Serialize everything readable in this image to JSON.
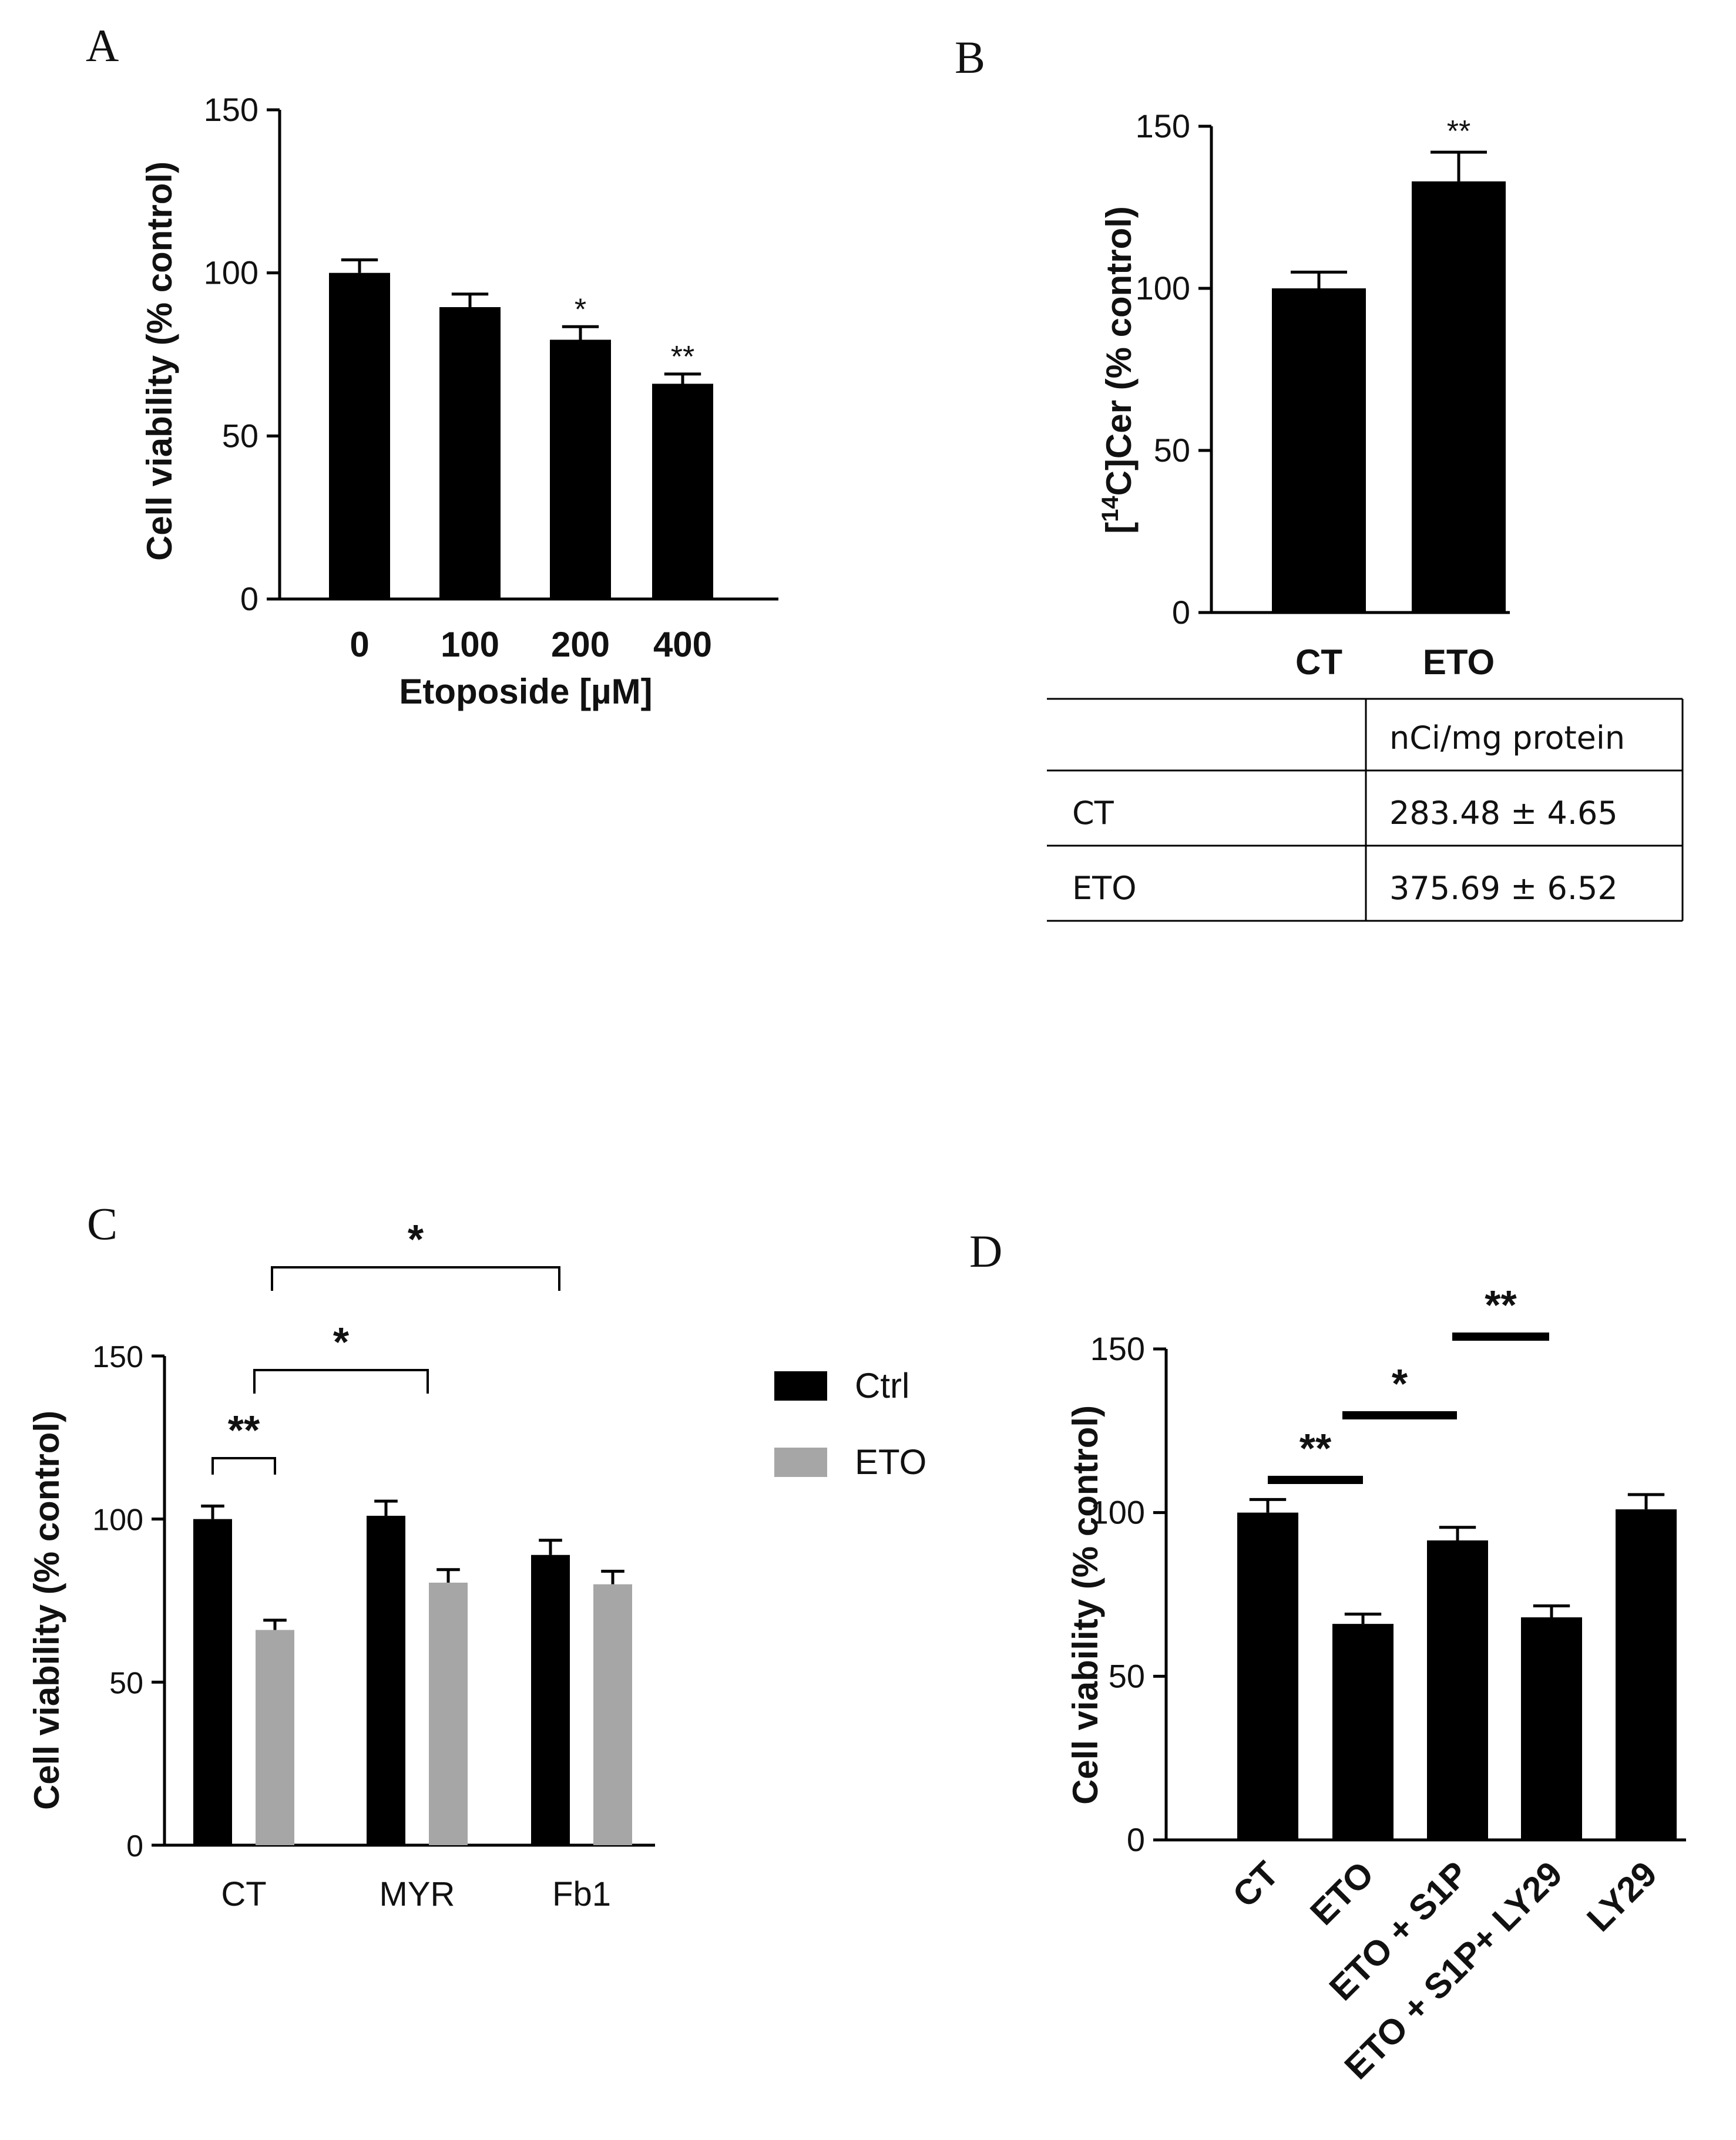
{
  "chart_data": [
    {
      "panel": "A",
      "type": "bar",
      "ylabel": "Cell viability (% control)",
      "xlabel": "Etoposide [µM]",
      "ylim": [
        0,
        150
      ],
      "yticks": [
        "0",
        "50",
        "100",
        "150"
      ],
      "categories": [
        "0",
        "100",
        "200",
        "400"
      ],
      "series": [
        {
          "name": "Cell viability",
          "color": "#000000",
          "values": [
            100,
            89.5,
            79.5,
            66
          ],
          "errors": [
            4,
            4,
            4,
            3
          ]
        }
      ],
      "significance": [
        "",
        "",
        "*",
        "**"
      ]
    },
    {
      "panel": "B",
      "type": "bar",
      "ylabel_parts": {
        "pre": "[",
        "sup": "14",
        "post": "C]Cer (% control)"
      },
      "ylim": [
        0,
        150
      ],
      "yticks": [
        "0",
        "50",
        "100",
        "150"
      ],
      "categories": [
        "CT",
        "ETO"
      ],
      "series": [
        {
          "name": "[14C]Cer",
          "color": "#000000",
          "values": [
            100,
            133
          ],
          "errors": [
            5,
            9
          ]
        }
      ],
      "significance": [
        "",
        "**"
      ],
      "table": {
        "header": [
          "",
          "nCi/mg protein"
        ],
        "rows": [
          [
            "CT",
            "283.48 ± 4.65"
          ],
          [
            "ETO",
            "375.69 ± 6.52"
          ]
        ]
      }
    },
    {
      "panel": "C",
      "type": "bar",
      "ylabel": "Cell viability (% control)",
      "ylim": [
        0,
        150
      ],
      "yticks": [
        "0",
        "50",
        "100",
        "150"
      ],
      "categories": [
        "CT",
        "MYR",
        "Fb1"
      ],
      "series": [
        {
          "name": "Ctrl",
          "color": "#000000",
          "values": [
            100,
            101,
            89
          ],
          "errors": [
            4,
            4.5,
            4.5
          ]
        },
        {
          "name": "ETO",
          "color": "#a6a6a6",
          "values": [
            66,
            80.5,
            80
          ],
          "errors": [
            3,
            4,
            4
          ]
        }
      ],
      "legend": [
        "Ctrl",
        "ETO"
      ],
      "brackets": [
        {
          "from": "CT-Ctrl",
          "to": "CT-ETO",
          "label": "**"
        },
        {
          "from": "CT",
          "to": "MYR",
          "label": "*"
        },
        {
          "from": "CT",
          "to": "Fb1",
          "label": "*"
        }
      ]
    },
    {
      "panel": "D",
      "type": "bar",
      "ylabel": "Cell viability (% control)",
      "ylim": [
        0,
        150
      ],
      "yticks": [
        "0",
        "50",
        "100",
        "150"
      ],
      "categories": [
        "CT",
        "ETO",
        "ETO + S1P",
        "ETO + S1P+ LY29",
        "LY29"
      ],
      "series": [
        {
          "name": "Cell viability",
          "color": "#000000",
          "values": [
            100,
            66,
            91.5,
            68,
            101
          ],
          "errors": [
            4,
            3,
            4,
            3.5,
            4.5
          ]
        }
      ],
      "brackets": [
        {
          "from": "CT",
          "to": "ETO",
          "label": "**"
        },
        {
          "from": "ETO",
          "to": "ETO + S1P",
          "label": "*"
        },
        {
          "from": "ETO + S1P",
          "to": "ETO + S1P+ LY29",
          "label": "**"
        }
      ]
    }
  ]
}
